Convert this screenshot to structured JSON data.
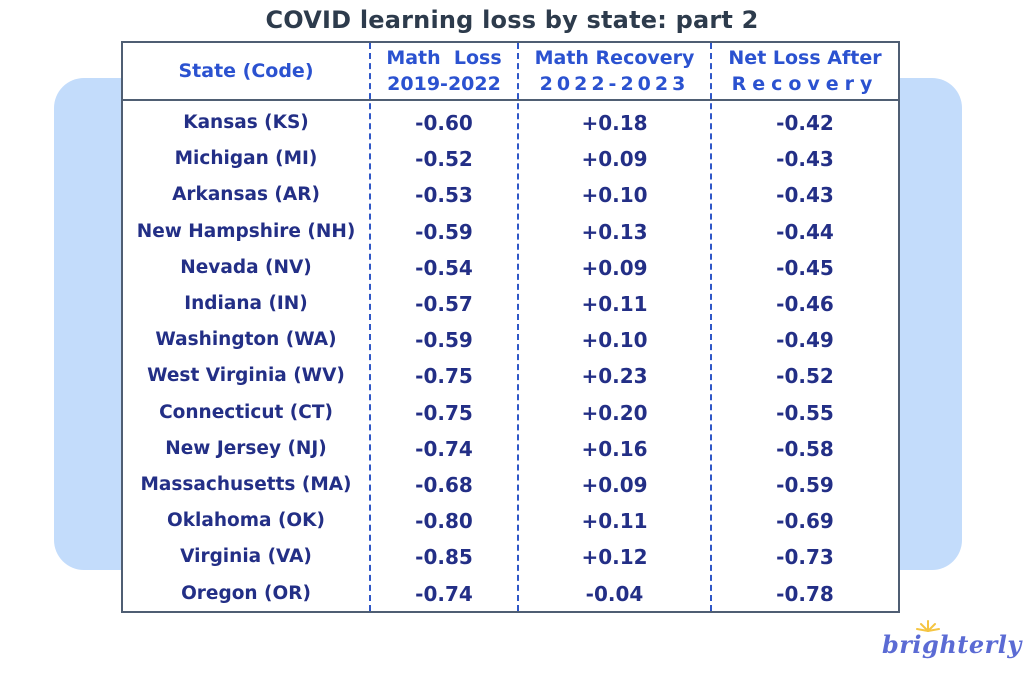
{
  "title": "COVID learning loss by state: part 2",
  "headers": {
    "state": "State (Code)",
    "math_loss_line1": "Math  Loss",
    "math_loss_line2": "2019-2022",
    "recovery_line1": "Math Recovery",
    "recovery_line2": "2022-2023",
    "net_line1": "Net Loss After",
    "net_line2": "Recovery"
  },
  "rows": [
    {
      "state": "Kansas (KS)",
      "loss": "-0.60",
      "recovery": "+0.18",
      "net": "-0.42"
    },
    {
      "state": "Michigan (MI)",
      "loss": "-0.52",
      "recovery": "+0.09",
      "net": "-0.43"
    },
    {
      "state": "Arkansas (AR)",
      "loss": "-0.53",
      "recovery": "+0.10",
      "net": "-0.43"
    },
    {
      "state": "New Hampshire (NH)",
      "loss": "-0.59",
      "recovery": "+0.13",
      "net": "-0.44"
    },
    {
      "state": "Nevada (NV)",
      "loss": "-0.54",
      "recovery": "+0.09",
      "net": "-0.45"
    },
    {
      "state": "Indiana (IN)",
      "loss": "-0.57",
      "recovery": "+0.11",
      "net": "-0.46"
    },
    {
      "state": "Washington (WA)",
      "loss": "-0.59",
      "recovery": "+0.10",
      "net": "-0.49"
    },
    {
      "state": "West Virginia (WV)",
      "loss": "-0.75",
      "recovery": "+0.23",
      "net": "-0.52"
    },
    {
      "state": "Connecticut (CT)",
      "loss": "-0.75",
      "recovery": "+0.20",
      "net": "-0.55"
    },
    {
      "state": "New Jersey (NJ)",
      "loss": "-0.74",
      "recovery": "+0.16",
      "net": "-0.58"
    },
    {
      "state": "Massachusetts (MA)",
      "loss": "-0.68",
      "recovery": "+0.09",
      "net": "-0.59"
    },
    {
      "state": "Oklahoma (OK)",
      "loss": "-0.80",
      "recovery": "+0.11",
      "net": "-0.69"
    },
    {
      "state": "Virginia (VA)",
      "loss": "-0.85",
      "recovery": "+0.12",
      "net": "-0.73"
    },
    {
      "state": "Oregon (OR)",
      "loss": "-0.74",
      "recovery": "-0.04",
      "net": "-0.78"
    }
  ],
  "logo": {
    "text": "brighterly",
    "icon": "sun-rays-icon"
  },
  "colors": {
    "header_text": "#2b52d0",
    "body_text": "#232f86",
    "title_text": "#2d3b4c",
    "backdrop": "#c3dcfb",
    "divider": "#2f57c7",
    "logo_text": "#5b6bd4",
    "logo_sun": "#f5c542"
  }
}
